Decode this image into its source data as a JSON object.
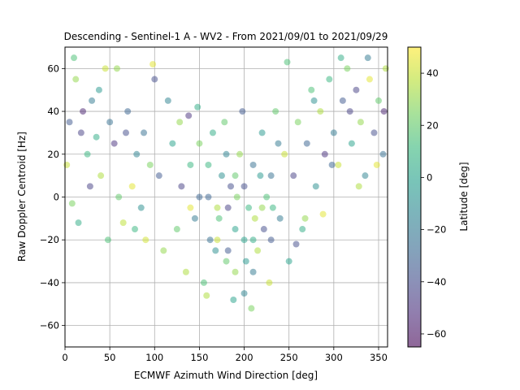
{
  "chart_data": {
    "type": "scatter",
    "title": "Descending - Sentinel-1 A - WV2 - From 2021/09/01 to 2021/09/29",
    "xlabel": "ECMWF Azimuth Wind Direction [deg]",
    "ylabel": "Raw Doppler Centroid [Hz]",
    "xlim": [
      0,
      360
    ],
    "ylim": [
      -70,
      70
    ],
    "xticks": [
      0,
      50,
      100,
      150,
      200,
      250,
      300,
      350
    ],
    "yticks": [
      -60,
      -40,
      -20,
      0,
      20,
      40,
      60
    ],
    "grid": true,
    "colorbar": {
      "label": "Latitude [deg]",
      "range": [
        -65,
        50
      ],
      "ticks": [
        -60,
        -40,
        -20,
        0,
        20,
        40
      ],
      "colormap": "viridis",
      "colors": [
        "#440154",
        "#482878",
        "#3e4989",
        "#31688e",
        "#26828e",
        "#1f9e89",
        "#35b779",
        "#6ece58",
        "#b5de2b",
        "#fde725"
      ]
    },
    "point_alpha": 0.5,
    "series": [
      {
        "points": [
          [
            5,
            35,
            -35
          ],
          [
            12,
            55,
            30
          ],
          [
            18,
            30,
            -45
          ],
          [
            25,
            20,
            10
          ],
          [
            30,
            45,
            -20
          ],
          [
            40,
            10,
            35
          ],
          [
            45,
            60,
            40
          ],
          [
            55,
            25,
            -50
          ],
          [
            60,
            0,
            20
          ],
          [
            70,
            40,
            -30
          ],
          [
            75,
            5,
            45
          ],
          [
            85,
            -5,
            -10
          ],
          [
            95,
            15,
            25
          ],
          [
            100,
            55,
            -40
          ],
          [
            10,
            65,
            15
          ],
          [
            20,
            40,
            -55
          ],
          [
            35,
            28,
            5
          ],
          [
            50,
            35,
            -25
          ],
          [
            65,
            -12,
            38
          ],
          [
            80,
            20,
            -15
          ],
          [
            90,
            -20,
            42
          ],
          [
            105,
            10,
            -35
          ],
          [
            110,
            -25,
            30
          ],
          [
            120,
            25,
            0
          ],
          [
            125,
            -15,
            20
          ],
          [
            130,
            5,
            -45
          ],
          [
            135,
            -35,
            35
          ],
          [
            140,
            15,
            10
          ],
          [
            145,
            -10,
            -20
          ],
          [
            150,
            25,
            25
          ],
          [
            155,
            -40,
            15
          ],
          [
            160,
            0,
            -30
          ],
          [
            165,
            30,
            5
          ],
          [
            170,
            -20,
            40
          ],
          [
            175,
            10,
            -10
          ],
          [
            180,
            -30,
            20
          ],
          [
            185,
            5,
            -40
          ],
          [
            190,
            -15,
            0
          ],
          [
            195,
            20,
            30
          ],
          [
            200,
            -45,
            -15
          ],
          [
            205,
            -5,
            10
          ],
          [
            210,
            15,
            -25
          ],
          [
            215,
            -25,
            35
          ],
          [
            220,
            30,
            -5
          ],
          [
            225,
            0,
            15
          ],
          [
            230,
            -20,
            -35
          ],
          [
            235,
            40,
            20
          ],
          [
            240,
            -10,
            -20
          ],
          [
            245,
            20,
            40
          ],
          [
            250,
            -30,
            0
          ],
          [
            255,
            10,
            -45
          ],
          [
            260,
            35,
            25
          ],
          [
            265,
            -15,
            5
          ],
          [
            270,
            25,
            -30
          ],
          [
            275,
            50,
            15
          ],
          [
            280,
            5,
            -10
          ],
          [
            285,
            40,
            35
          ],
          [
            290,
            20,
            -50
          ],
          [
            295,
            55,
            10
          ],
          [
            300,
            30,
            -20
          ],
          [
            305,
            15,
            40
          ],
          [
            310,
            45,
            -35
          ],
          [
            315,
            60,
            25
          ],
          [
            320,
            25,
            0
          ],
          [
            325,
            50,
            -45
          ],
          [
            330,
            35,
            30
          ],
          [
            335,
            10,
            -15
          ],
          [
            340,
            55,
            45
          ],
          [
            345,
            30,
            -40
          ],
          [
            350,
            45,
            20
          ],
          [
            355,
            20,
            -25
          ],
          [
            358,
            60,
            35
          ],
          [
            2,
            15,
            40
          ],
          [
            8,
            -3,
            25
          ],
          [
            15,
            -12,
            5
          ],
          [
            28,
            5,
            -45
          ],
          [
            38,
            50,
            -5
          ],
          [
            48,
            -20,
            15
          ],
          [
            58,
            60,
            30
          ],
          [
            68,
            30,
            -40
          ],
          [
            78,
            -15,
            10
          ],
          [
            88,
            30,
            -25
          ],
          [
            98,
            62,
            45
          ],
          [
            115,
            45,
            -15
          ],
          [
            128,
            35,
            30
          ],
          [
            138,
            38,
            -50
          ],
          [
            148,
            42,
            5
          ],
          [
            158,
            -46,
            35
          ],
          [
            168,
            -25,
            -10
          ],
          [
            178,
            35,
            20
          ],
          [
            188,
            -48,
            0
          ],
          [
            198,
            40,
            -35
          ],
          [
            208,
            -52,
            25
          ],
          [
            218,
            10,
            -5
          ],
          [
            228,
            -40,
            40
          ],
          [
            238,
            25,
            -20
          ],
          [
            248,
            63,
            15
          ],
          [
            258,
            -22,
            -40
          ],
          [
            268,
            -10,
            30
          ],
          [
            278,
            45,
            -10
          ],
          [
            288,
            -8,
            45
          ],
          [
            298,
            15,
            -30
          ],
          [
            308,
            65,
            5
          ],
          [
            318,
            40,
            -45
          ],
          [
            328,
            5,
            35
          ],
          [
            338,
            65,
            -20
          ],
          [
            348,
            15,
            45
          ],
          [
            356,
            40,
            -55
          ],
          [
            162,
            -20,
            -25
          ],
          [
            172,
            -10,
            15
          ],
          [
            182,
            -25,
            -35
          ],
          [
            192,
            0,
            25
          ],
          [
            202,
            -30,
            -5
          ],
          [
            212,
            -10,
            35
          ],
          [
            222,
            -15,
            -40
          ],
          [
            232,
            -5,
            10
          ],
          [
            182,
            -5,
            -45
          ],
          [
            190,
            -35,
            30
          ],
          [
            200,
            -20,
            0
          ],
          [
            210,
            -35,
            -20
          ],
          [
            140,
            -5,
            45
          ],
          [
            150,
            0,
            -30
          ],
          [
            160,
            15,
            10
          ],
          [
            170,
            -5,
            35
          ],
          [
            180,
            20,
            -15
          ],
          [
            190,
            10,
            20
          ],
          [
            200,
            5,
            -40
          ],
          [
            210,
            -20,
            5
          ],
          [
            220,
            -5,
            30
          ],
          [
            230,
            10,
            -25
          ]
        ]
      }
    ]
  }
}
